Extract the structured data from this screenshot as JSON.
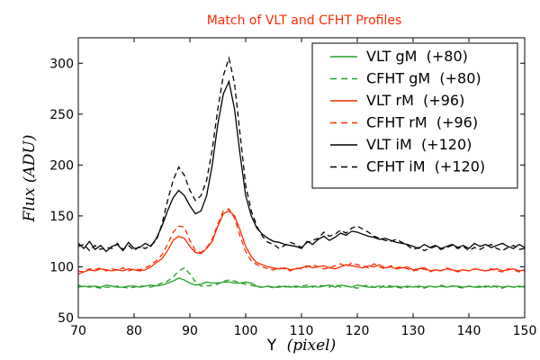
{
  "chart_data": {
    "type": "line",
    "title": "Match of VLT and CFHT Profiles",
    "xlabel_prefix": "Y",
    "xlabel_italic": "(pixel)",
    "ylabel_italic": "Flux (ADU)",
    "xlim": [
      70,
      150
    ],
    "ylim": [
      50,
      325
    ],
    "xticks": [
      70,
      80,
      90,
      100,
      110,
      120,
      130,
      140,
      150
    ],
    "yticks": [
      50,
      100,
      150,
      200,
      250,
      300
    ],
    "legend_position": "top-right",
    "series": [
      {
        "name": "VLT gM  (+80)",
        "color": "#22a022",
        "dash": "solid",
        "x": [
          70,
          71,
          72,
          73,
          74,
          75,
          76,
          77,
          78,
          79,
          80,
          81,
          82,
          83,
          84,
          85,
          86,
          87,
          88,
          89,
          90,
          91,
          92,
          93,
          94,
          95,
          96,
          97,
          98,
          99,
          100,
          101,
          102,
          103,
          104,
          105,
          106,
          107,
          108,
          109,
          110,
          111,
          112,
          113,
          114,
          115,
          116,
          117,
          118,
          119,
          120,
          121,
          122,
          123,
          124,
          125,
          126,
          127,
          128,
          129,
          130,
          131,
          132,
          133,
          134,
          135,
          136,
          137,
          138,
          139,
          140,
          141,
          142,
          143,
          144,
          145,
          146,
          147,
          148,
          149,
          150
        ],
        "values": [
          80,
          81,
          80,
          81,
          80,
          82,
          81,
          80,
          80,
          81,
          81,
          80,
          81,
          82,
          81,
          82,
          84,
          86,
          89,
          87,
          84,
          82,
          83,
          85,
          84,
          84,
          85,
          85,
          84,
          84,
          85,
          84,
          81,
          80,
          81,
          80,
          80,
          81,
          80,
          81,
          80,
          80,
          81,
          80,
          81,
          82,
          80,
          82,
          81,
          80,
          82,
          81,
          80,
          80,
          81,
          80,
          80,
          81,
          80,
          81,
          80,
          81,
          80,
          81,
          80,
          81,
          80,
          81,
          81,
          80,
          81,
          80,
          80,
          81,
          80,
          81,
          80,
          81,
          80,
          81,
          80
        ]
      },
      {
        "name": "CFHT gM  (+80)",
        "color": "#22a022",
        "dash": "dashed",
        "x": [
          70,
          71,
          72,
          73,
          74,
          75,
          76,
          77,
          78,
          79,
          80,
          81,
          82,
          83,
          84,
          85,
          86,
          87,
          88,
          89,
          90,
          91,
          92,
          93,
          94,
          95,
          96,
          97,
          98,
          99,
          100,
          101,
          102,
          103,
          104,
          105,
          106,
          107,
          108,
          109,
          110,
          111,
          112,
          113,
          114,
          115,
          116,
          117,
          118,
          119,
          120,
          121,
          122,
          123,
          124,
          125,
          126,
          127,
          128,
          129,
          130,
          131,
          132,
          133,
          134,
          135,
          136,
          137,
          138,
          139,
          140,
          141,
          142,
          143,
          144,
          145,
          146,
          147,
          148,
          149,
          150
        ],
        "values": [
          82,
          80,
          81,
          80,
          79,
          80,
          80,
          81,
          80,
          79,
          80,
          81,
          81,
          80,
          82,
          84,
          86,
          90,
          96,
          99,
          93,
          85,
          81,
          81,
          82,
          83,
          86,
          87,
          86,
          84,
          83,
          82,
          80,
          80,
          81,
          79,
          81,
          80,
          81,
          80,
          81,
          82,
          80,
          82,
          81,
          80,
          83,
          80,
          81,
          80,
          79,
          81,
          82,
          80,
          79,
          82,
          81,
          80,
          79,
          80,
          81,
          80,
          79,
          81,
          80,
          82,
          80,
          81,
          80,
          79,
          81,
          80,
          81,
          80,
          82,
          80,
          79,
          81,
          80,
          80,
          81
        ]
      },
      {
        "name": "VLT rM  (+96)",
        "color": "#ff2a00",
        "dash": "solid",
        "x": [
          70,
          71,
          72,
          73,
          74,
          75,
          76,
          77,
          78,
          79,
          80,
          81,
          82,
          83,
          84,
          85,
          86,
          87,
          88,
          89,
          90,
          91,
          92,
          93,
          94,
          95,
          96,
          97,
          98,
          99,
          100,
          101,
          102,
          103,
          104,
          105,
          106,
          107,
          108,
          109,
          110,
          111,
          112,
          113,
          114,
          115,
          116,
          117,
          118,
          119,
          120,
          121,
          122,
          123,
          124,
          125,
          126,
          127,
          128,
          129,
          130,
          131,
          132,
          133,
          134,
          135,
          136,
          137,
          138,
          139,
          140,
          141,
          142,
          143,
          144,
          145,
          146,
          147,
          148,
          149,
          150
        ],
        "values": [
          96,
          95,
          97,
          96,
          98,
          97,
          96,
          97,
          96,
          98,
          97,
          96,
          97,
          100,
          104,
          108,
          116,
          126,
          130,
          128,
          120,
          114,
          113,
          118,
          125,
          140,
          152,
          155,
          150,
          136,
          120,
          110,
          104,
          102,
          100,
          99,
          98,
          99,
          97,
          98,
          99,
          101,
          99,
          100,
          101,
          99,
          98,
          100,
          102,
          101,
          100,
          99,
          101,
          100,
          102,
          99,
          100,
          98,
          99,
          100,
          97,
          98,
          99,
          96,
          97,
          96,
          98,
          97,
          96,
          97,
          96,
          98,
          97,
          96,
          97,
          98,
          96,
          97,
          98,
          96,
          97
        ]
      },
      {
        "name": "CFHT rM  (+96)",
        "color": "#ff2a00",
        "dash": "dashed",
        "x": [
          70,
          71,
          72,
          73,
          74,
          75,
          76,
          77,
          78,
          79,
          80,
          81,
          82,
          83,
          84,
          85,
          86,
          87,
          88,
          89,
          90,
          91,
          92,
          93,
          94,
          95,
          96,
          97,
          98,
          99,
          100,
          101,
          102,
          103,
          104,
          105,
          106,
          107,
          108,
          109,
          110,
          111,
          112,
          113,
          114,
          115,
          116,
          117,
          118,
          119,
          120,
          121,
          122,
          123,
          124,
          125,
          126,
          127,
          128,
          129,
          130,
          131,
          132,
          133,
          134,
          135,
          136,
          137,
          138,
          139,
          140,
          141,
          142,
          143,
          144,
          145,
          146,
          147,
          148,
          149,
          150
        ],
        "values": [
          93,
          95,
          98,
          97,
          99,
          96,
          98,
          97,
          99,
          96,
          98,
          97,
          99,
          102,
          106,
          112,
          122,
          134,
          140,
          139,
          126,
          116,
          114,
          119,
          127,
          142,
          155,
          157,
          148,
          130,
          115,
          106,
          102,
          100,
          98,
          97,
          99,
          98,
          96,
          99,
          98,
          100,
          102,
          100,
          98,
          99,
          101,
          103,
          100,
          104,
          102,
          101,
          99,
          103,
          100,
          98,
          101,
          99,
          100,
          98,
          96,
          97,
          98,
          95,
          97,
          96,
          99,
          97,
          95,
          97,
          96,
          98,
          97,
          96,
          98,
          96,
          95,
          98,
          97,
          95,
          96
        ]
      },
      {
        "name": "VLT iM  (+120)",
        "color": "#000000",
        "dash": "solid",
        "x": [
          70,
          71,
          72,
          73,
          74,
          75,
          76,
          77,
          78,
          79,
          80,
          81,
          82,
          83,
          84,
          85,
          86,
          87,
          88,
          89,
          90,
          91,
          92,
          93,
          94,
          95,
          96,
          97,
          98,
          99,
          100,
          101,
          102,
          103,
          104,
          105,
          106,
          107,
          108,
          109,
          110,
          111,
          112,
          113,
          114,
          115,
          116,
          117,
          118,
          119,
          120,
          121,
          122,
          123,
          124,
          125,
          126,
          127,
          128,
          129,
          130,
          131,
          132,
          133,
          134,
          135,
          136,
          137,
          138,
          139,
          140,
          141,
          142,
          143,
          144,
          145,
          146,
          147,
          148,
          149,
          150
        ],
        "values": [
          123,
          118,
          125,
          117,
          121,
          115,
          120,
          122,
          116,
          124,
          118,
          119,
          123,
          120,
          128,
          140,
          155,
          168,
          175,
          170,
          160,
          152,
          155,
          170,
          200,
          240,
          270,
          282,
          255,
          210,
          170,
          150,
          138,
          132,
          128,
          125,
          124,
          122,
          121,
          120,
          118,
          125,
          122,
          127,
          130,
          126,
          129,
          133,
          131,
          135,
          134,
          132,
          130,
          129,
          127,
          128,
          126,
          124,
          123,
          122,
          120,
          118,
          122,
          119,
          121,
          118,
          120,
          122,
          119,
          121,
          118,
          123,
          120,
          122,
          119,
          121,
          123,
          120,
          118,
          122,
          119
        ]
      },
      {
        "name": "CFHT iM  (+120)",
        "color": "#000000",
        "dash": "dashed",
        "x": [
          70,
          71,
          72,
          73,
          74,
          75,
          76,
          77,
          78,
          79,
          80,
          81,
          82,
          83,
          84,
          85,
          86,
          87,
          88,
          89,
          90,
          91,
          92,
          93,
          94,
          95,
          96,
          97,
          98,
          99,
          100,
          101,
          102,
          103,
          104,
          105,
          106,
          107,
          108,
          109,
          110,
          111,
          112,
          113,
          114,
          115,
          116,
          117,
          118,
          119,
          120,
          121,
          122,
          123,
          124,
          125,
          126,
          127,
          128,
          129,
          130,
          131,
          132,
          133,
          134,
          135,
          136,
          137,
          138,
          139,
          140,
          141,
          142,
          143,
          144,
          145,
          146,
          147,
          148,
          149,
          150
        ],
        "values": [
          120,
          122,
          116,
          121,
          117,
          119,
          118,
          123,
          117,
          121,
          116,
          120,
          118,
          121,
          126,
          142,
          165,
          185,
          198,
          190,
          175,
          165,
          170,
          185,
          215,
          255,
          288,
          305,
          280,
          230,
          180,
          155,
          140,
          130,
          124,
          122,
          118,
          121,
          124,
          122,
          119,
          124,
          126,
          128,
          134,
          130,
          132,
          136,
          133,
          138,
          140,
          137,
          134,
          130,
          128,
          126,
          125,
          127,
          124,
          121,
          117,
          119,
          116,
          118,
          120,
          117,
          119,
          121,
          118,
          120,
          116,
          119,
          117,
          120,
          122,
          118,
          116,
          119,
          121,
          117,
          118
        ]
      }
    ]
  }
}
